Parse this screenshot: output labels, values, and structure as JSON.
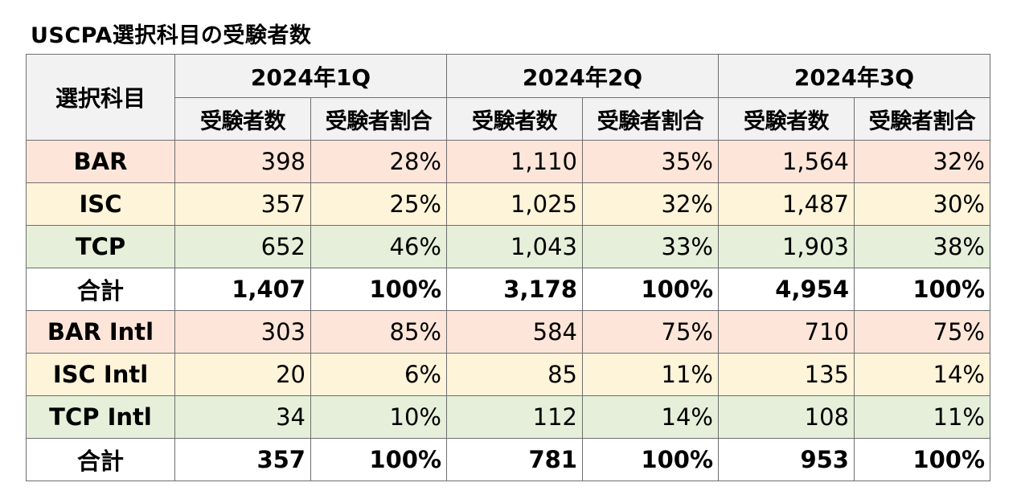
{
  "title": "USCPA選択科目の受験者数",
  "table": {
    "corner_label": "選択科目",
    "periods": [
      "2024年1Q",
      "2024年2Q",
      "2024年3Q"
    ],
    "sub_headers": [
      "受験者数",
      "受験者割合",
      "受験者数",
      "受験者割合",
      "受験者数",
      "受験者割合"
    ],
    "rows": [
      {
        "label": "BAR",
        "kind": "bar",
        "values": [
          "398",
          "28%",
          "1,110",
          "35%",
          "1,564",
          "32%"
        ]
      },
      {
        "label": "ISC",
        "kind": "isc",
        "values": [
          "357",
          "25%",
          "1,025",
          "32%",
          "1,487",
          "30%"
        ]
      },
      {
        "label": "TCP",
        "kind": "tcp",
        "values": [
          "652",
          "46%",
          "1,043",
          "33%",
          "1,903",
          "38%"
        ]
      },
      {
        "label": "合計",
        "kind": "total",
        "values": [
          "1,407",
          "100%",
          "3,178",
          "100%",
          "4,954",
          "100%"
        ]
      },
      {
        "label": "BAR Intl",
        "kind": "bar",
        "values": [
          "303",
          "85%",
          "584",
          "75%",
          "710",
          "75%"
        ]
      },
      {
        "label": "ISC Intl",
        "kind": "isc",
        "values": [
          "20",
          "6%",
          "85",
          "11%",
          "135",
          "14%"
        ]
      },
      {
        "label": "TCP Intl",
        "kind": "tcp",
        "values": [
          "34",
          "10%",
          "112",
          "14%",
          "108",
          "11%"
        ]
      },
      {
        "label": "合計",
        "kind": "total",
        "values": [
          "357",
          "100%",
          "781",
          "100%",
          "953",
          "100%"
        ]
      }
    ]
  },
  "colors": {
    "header_bg": "#f2f2f2",
    "bar_row_bg": "#fde6d9",
    "isc_row_bg": "#fef4d9",
    "tcp_row_bg": "#e6efd9",
    "total_row_bg": "#ffffff",
    "border": "#6e6e6e"
  }
}
